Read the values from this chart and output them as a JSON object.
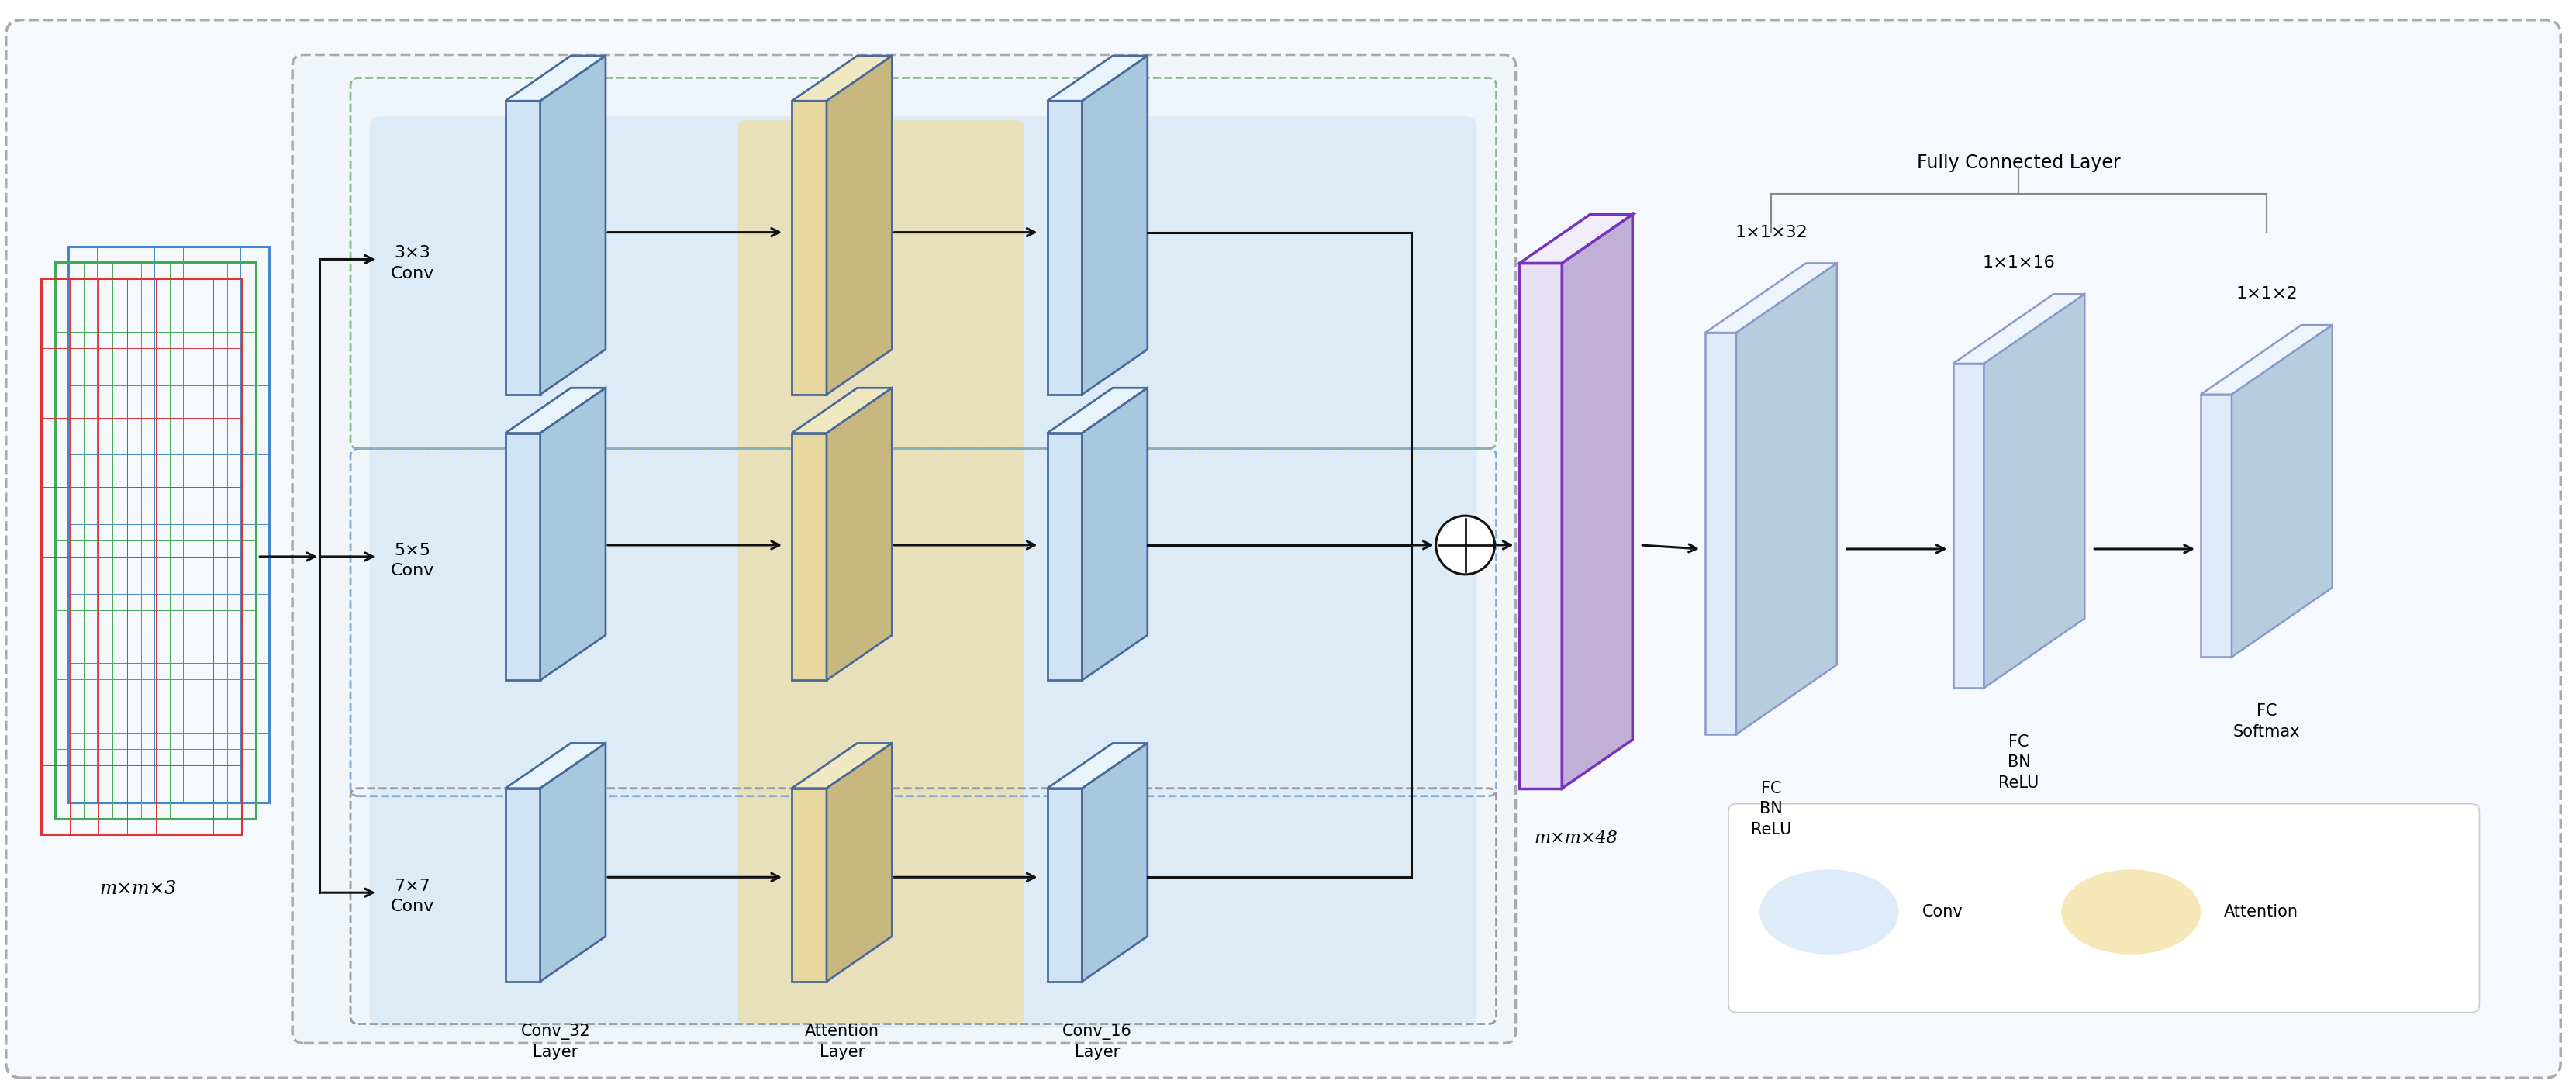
{
  "fig_width": 33.22,
  "fig_height": 13.98,
  "title_fc": "Fully Connected Layer",
  "label_mxmx3": "m×m×3",
  "label_mxmx48": "m×m×48",
  "label_3x3": "3×3\nConv",
  "label_5x5": "5×5\nConv",
  "label_7x7": "7×7\nConv",
  "label_conv32": "Conv_32\nLayer",
  "label_attn": "Attention\nLayer",
  "label_conv16": "Conv_16\nLayer",
  "label_fc1": "1×1×32",
  "label_fc2": "1×1×16",
  "label_fc3": "1×1×2",
  "label_fc1_sub": "FC\nBN\nReLU",
  "label_fc2_sub": "FC\nBN\nReLU",
  "label_fc3_sub": "FC\nSoftmax",
  "legend_conv": "Conv",
  "legend_attn": "Attention",
  "conv_face": "#d0e4f5",
  "conv_top": "#e8f4fc",
  "conv_right": "#a8c8e0",
  "conv_edge": "#4a6a9a",
  "attn_face": "#e8d8a0",
  "attn_top": "#f0e8c0",
  "attn_right": "#c8b880",
  "attn_edge": "#4a6a9a",
  "purple_face": "#e8e0f4",
  "purple_top": "#f0ecf8",
  "purple_right": "#c0b0d8",
  "purple_edge": "#7733bb",
  "fc_face": "#e0eaf8",
  "fc_top": "#eef4fc",
  "fc_right": "#b8cce0",
  "fc_edge": "#8899cc",
  "conv_bg": "#c8dff5",
  "attn_bg": "#f0d88a",
  "green_dash": "#88bb88",
  "blue_dash": "#88aacc",
  "gray_dash": "#999999",
  "outer_dash": "#aaaaaa",
  "inner_dash": "#aaaaaa"
}
